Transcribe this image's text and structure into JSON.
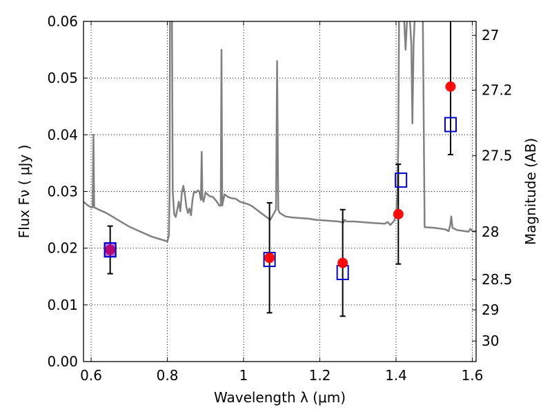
{
  "chart_data": {
    "type": "scatter",
    "xlabel": "Wavelength  λ (μm)",
    "ylabel": "Flux  Fν  ( μJy )",
    "y2label": "Magnitude (AB)",
    "xlim": [
      0.58,
      1.61
    ],
    "ylim": [
      0.0,
      0.06
    ],
    "x_ticks": [
      {
        "value": 0.6,
        "label": "0.6"
      },
      {
        "value": 0.8,
        "label": "0.8"
      },
      {
        "value": 1.0,
        "label": "1"
      },
      {
        "value": 1.2,
        "label": "1.2"
      },
      {
        "value": 1.4,
        "label": "1.4"
      },
      {
        "value": 1.6,
        "label": "1.6"
      }
    ],
    "y_ticks": [
      {
        "value": 0.0,
        "label": "0.00"
      },
      {
        "value": 0.01,
        "label": "0.01"
      },
      {
        "value": 0.02,
        "label": "0.02"
      },
      {
        "value": 0.03,
        "label": "0.03"
      },
      {
        "value": 0.04,
        "label": "0.04"
      },
      {
        "value": 0.05,
        "label": "0.05"
      },
      {
        "value": 0.06,
        "label": "0.06"
      }
    ],
    "y2_ticks": [
      {
        "value": 27,
        "label": "27"
      },
      {
        "value": 27.2,
        "label": "27.2"
      },
      {
        "value": 27.5,
        "label": "27.5"
      },
      {
        "value": 28,
        "label": "28"
      },
      {
        "value": 28.5,
        "label": "28.5"
      },
      {
        "value": 29,
        "label": "29"
      },
      {
        "value": 30,
        "label": "30"
      }
    ],
    "grid": true,
    "series": [
      {
        "kind": "line",
        "color": "#808080",
        "points": [
          [
            0.58,
            0.0282
          ],
          [
            0.59,
            0.0276
          ],
          [
            0.6,
            0.0272
          ],
          [
            0.604,
            0.0272
          ],
          [
            0.606,
            0.04
          ],
          [
            0.608,
            0.0272
          ],
          [
            0.62,
            0.0268
          ],
          [
            0.64,
            0.0262
          ],
          [
            0.66,
            0.0254
          ],
          [
            0.68,
            0.0246
          ],
          [
            0.7,
            0.0238
          ],
          [
            0.72,
            0.0232
          ],
          [
            0.74,
            0.0226
          ],
          [
            0.76,
            0.022
          ],
          [
            0.78,
            0.0216
          ],
          [
            0.795,
            0.0213
          ],
          [
            0.8,
            0.0212
          ],
          [
            0.804,
            0.0222
          ],
          [
            0.806,
            0.03
          ],
          [
            0.807,
            0.062
          ],
          [
            0.812,
            0.062
          ],
          [
            0.814,
            0.03
          ],
          [
            0.818,
            0.026
          ],
          [
            0.822,
            0.0255
          ],
          [
            0.826,
            0.0268
          ],
          [
            0.83,
            0.0282
          ],
          [
            0.834,
            0.0265
          ],
          [
            0.838,
            0.0298
          ],
          [
            0.842,
            0.031
          ],
          [
            0.846,
            0.0295
          ],
          [
            0.85,
            0.0272
          ],
          [
            0.854,
            0.0262
          ],
          [
            0.858,
            0.027
          ],
          [
            0.862,
            0.0258
          ],
          [
            0.866,
            0.0285
          ],
          [
            0.87,
            0.03
          ],
          [
            0.875,
            0.0298
          ],
          [
            0.88,
            0.0302
          ],
          [
            0.884,
            0.03
          ],
          [
            0.888,
            0.0285
          ],
          [
            0.89,
            0.037
          ],
          [
            0.892,
            0.0288
          ],
          [
            0.895,
            0.0282
          ],
          [
            0.9,
            0.0298
          ],
          [
            0.91,
            0.0292
          ],
          [
            0.92,
            0.029
          ],
          [
            0.93,
            0.0282
          ],
          [
            0.936,
            0.0275
          ],
          [
            0.94,
            0.0275
          ],
          [
            0.942,
            0.055
          ],
          [
            0.944,
            0.0275
          ],
          [
            0.95,
            0.0295
          ],
          [
            0.96,
            0.029
          ],
          [
            0.97,
            0.0288
          ],
          [
            0.98,
            0.0287
          ],
          [
            0.99,
            0.0282
          ],
          [
            1.0,
            0.028
          ],
          [
            1.01,
            0.0278
          ],
          [
            1.02,
            0.0275
          ],
          [
            1.03,
            0.027
          ],
          [
            1.04,
            0.0265
          ],
          [
            1.05,
            0.026
          ],
          [
            1.06,
            0.0255
          ],
          [
            1.07,
            0.025
          ],
          [
            1.08,
            0.0262
          ],
          [
            1.085,
            0.0268
          ],
          [
            1.088,
            0.053
          ],
          [
            1.091,
            0.0268
          ],
          [
            1.095,
            0.0262
          ],
          [
            1.11,
            0.0256
          ],
          [
            1.13,
            0.0254
          ],
          [
            1.15,
            0.0253
          ],
          [
            1.17,
            0.0252
          ],
          [
            1.19,
            0.025
          ],
          [
            1.21,
            0.0249
          ],
          [
            1.23,
            0.0248
          ],
          [
            1.25,
            0.0247
          ],
          [
            1.262,
            0.0245
          ],
          [
            1.265,
            0.025
          ],
          [
            1.27,
            0.0247
          ],
          [
            1.29,
            0.0247
          ],
          [
            1.31,
            0.0246
          ],
          [
            1.33,
            0.0245
          ],
          [
            1.35,
            0.0244
          ],
          [
            1.37,
            0.0243
          ],
          [
            1.378,
            0.0246
          ],
          [
            1.385,
            0.0241
          ],
          [
            1.395,
            0.0248
          ],
          [
            1.4,
            0.0258
          ],
          [
            1.404,
            0.03
          ],
          [
            1.406,
            0.04
          ],
          [
            1.408,
            0.062
          ],
          [
            1.412,
            0.062
          ],
          [
            1.42,
            0.062
          ],
          [
            1.425,
            0.055
          ],
          [
            1.43,
            0.062
          ],
          [
            1.435,
            0.062
          ],
          [
            1.44,
            0.056
          ],
          [
            1.443,
            0.042
          ],
          [
            1.446,
            0.056
          ],
          [
            1.45,
            0.062
          ],
          [
            1.47,
            0.062
          ],
          [
            1.475,
            0.0237
          ],
          [
            1.5,
            0.0236
          ],
          [
            1.52,
            0.0234
          ],
          [
            1.53,
            0.0233
          ],
          [
            1.538,
            0.023
          ],
          [
            1.542,
            0.024
          ],
          [
            1.545,
            0.0256
          ],
          [
            1.548,
            0.0236
          ],
          [
            1.56,
            0.0232
          ],
          [
            1.58,
            0.023
          ],
          [
            1.59,
            0.0229
          ],
          [
            1.595,
            0.0234
          ],
          [
            1.6,
            0.023
          ],
          [
            1.61,
            0.023
          ]
        ]
      },
      {
        "kind": "points-with-errorbars",
        "marker": "circle",
        "color": "#ff0000",
        "points": [
          {
            "x": 0.65,
            "y": 0.0197,
            "err": 0.0042
          },
          {
            "x": 1.068,
            "y": 0.0183,
            "err": 0.0097
          },
          {
            "x": 1.26,
            "y": 0.0174,
            "err": 0.0094
          },
          {
            "x": 1.406,
            "y": 0.026,
            "err": 0.0088
          },
          {
            "x": 1.543,
            "y": 0.0485,
            "err": 0.012
          }
        ]
      },
      {
        "kind": "points",
        "marker": "open-square",
        "color": "#0000cc",
        "points": [
          {
            "x": 0.65,
            "y": 0.0197
          },
          {
            "x": 1.068,
            "y": 0.018
          },
          {
            "x": 1.26,
            "y": 0.0157
          },
          {
            "x": 1.413,
            "y": 0.032
          },
          {
            "x": 1.543,
            "y": 0.0418
          }
        ]
      }
    ]
  }
}
